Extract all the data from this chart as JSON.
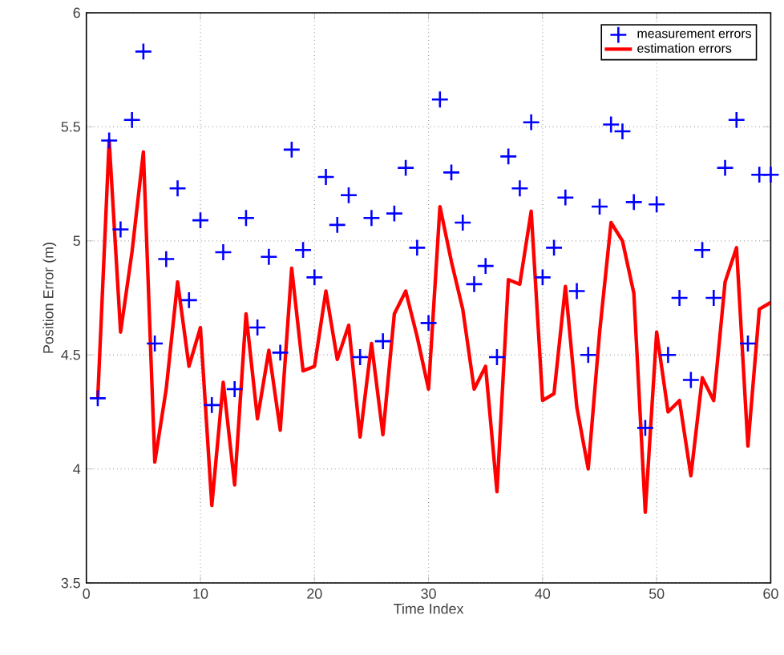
{
  "chart_data": {
    "type": "scatter",
    "xlabel": "Time Index",
    "ylabel": "Position Error (m)",
    "x": [
      1,
      2,
      3,
      4,
      5,
      6,
      7,
      8,
      9,
      10,
      11,
      12,
      13,
      14,
      15,
      16,
      17,
      18,
      19,
      20,
      21,
      22,
      23,
      24,
      25,
      26,
      27,
      28,
      29,
      30,
      31,
      32,
      33,
      34,
      35,
      36,
      37,
      38,
      39,
      40,
      41,
      42,
      43,
      44,
      45,
      46,
      47,
      48,
      49,
      50,
      51,
      52,
      53,
      54,
      55,
      56,
      57,
      58,
      59,
      60
    ],
    "series": [
      {
        "name": "measurement errors",
        "marker": "cross",
        "color": "#0000ff",
        "values": [
          4.31,
          5.44,
          5.05,
          5.53,
          5.83,
          4.55,
          4.92,
          5.23,
          4.74,
          5.09,
          4.28,
          4.95,
          4.35,
          5.1,
          4.62,
          4.93,
          4.51,
          5.4,
          4.96,
          4.84,
          5.28,
          5.07,
          5.2,
          4.49,
          5.1,
          4.56,
          5.12,
          5.32,
          4.97,
          4.64,
          5.62,
          5.3,
          5.08,
          4.81,
          4.89,
          4.49,
          5.37,
          5.23,
          5.52,
          4.84,
          4.97,
          5.19,
          4.78,
          4.5,
          5.15,
          5.51,
          5.48,
          5.17,
          4.18,
          5.16,
          4.5,
          4.75,
          4.39,
          4.96,
          4.75,
          5.32,
          5.53,
          4.55,
          5.29,
          5.29
        ]
      },
      {
        "name": "estimation errors",
        "type": "line",
        "line_style": "solid",
        "color": "#ff0000",
        "values": [
          4.31,
          5.44,
          4.6,
          4.95,
          5.39,
          4.03,
          4.35,
          4.82,
          4.45,
          4.62,
          3.84,
          4.38,
          3.93,
          4.68,
          4.22,
          4.52,
          4.17,
          4.88,
          4.43,
          4.45,
          4.78,
          4.48,
          4.63,
          4.14,
          4.55,
          4.15,
          4.68,
          4.78,
          4.58,
          4.35,
          5.15,
          4.91,
          4.7,
          4.35,
          4.45,
          3.9,
          4.83,
          4.81,
          5.13,
          4.3,
          4.33,
          4.8,
          4.27,
          4.0,
          4.6,
          5.08,
          5.0,
          4.77,
          3.81,
          4.6,
          4.25,
          4.3,
          3.97,
          4.4,
          4.3,
          4.82,
          4.97,
          4.1,
          4.7,
          4.73
        ]
      }
    ],
    "xlim": [
      0,
      60
    ],
    "xticks": [
      0,
      10,
      20,
      30,
      40,
      50,
      60
    ],
    "ylim": [
      3.5,
      6
    ],
    "yticks": [
      3.5,
      4,
      4.5,
      5,
      5.5,
      6
    ],
    "grid": true,
    "legend": "top right"
  }
}
